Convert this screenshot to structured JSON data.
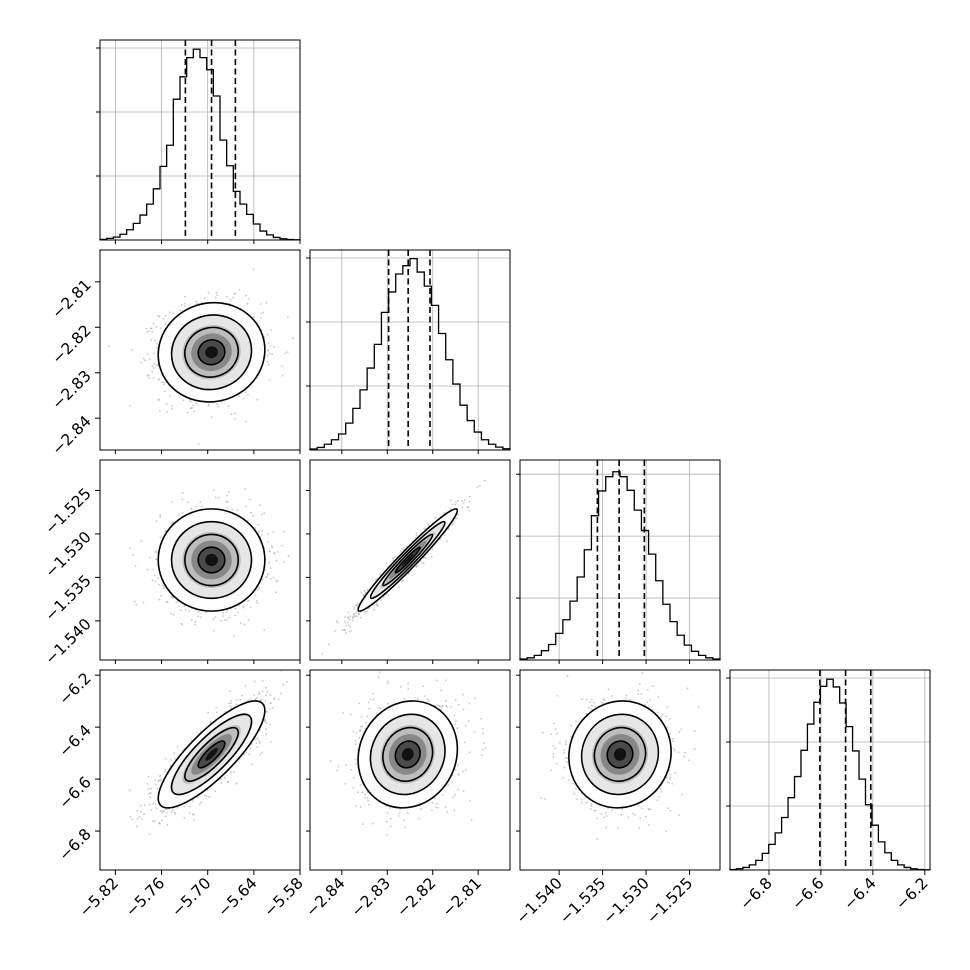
{
  "chart_data": {
    "type": "corner",
    "n_params": 4,
    "ranges": [
      [
        -5.84,
        -5.58
      ],
      [
        -2.847,
        -2.803
      ],
      [
        -1.5445,
        -1.5215
      ],
      [
        -6.95,
        -6.18
      ]
    ],
    "ticks": [
      {
        "values": [
          -5.82,
          -5.76,
          -5.7,
          -5.64,
          -5.58
        ],
        "labels": [
          "−5.82",
          "−5.76",
          "−5.70",
          "−5.64",
          "−5.58"
        ]
      },
      {
        "values": [
          -2.84,
          -2.83,
          -2.82,
          -2.81
        ],
        "labels": [
          "−2.84",
          "−2.83",
          "−2.82",
          "−2.81"
        ]
      },
      {
        "values": [
          -1.54,
          -1.535,
          -1.53,
          -1.525
        ],
        "labels": [
          "−1.540",
          "−1.535",
          "−1.530",
          "−1.525"
        ]
      },
      {
        "values": [
          -6.8,
          -6.6,
          -6.4,
          -6.2
        ],
        "labels": [
          "−6.8",
          "−6.6",
          "−6.4",
          "−6.2"
        ]
      }
    ],
    "marginals": [
      {
        "quantiles": [
          -5.729,
          -5.695,
          -5.664
        ],
        "hist_max": 3000,
        "hist_yticks": [
          1000,
          2000,
          3000
        ],
        "counts": [
          10,
          25,
          45,
          90,
          160,
          260,
          390,
          560,
          800,
          1150,
          1480,
          2200,
          2550,
          2850,
          2980,
          2850,
          2660,
          2250,
          1560,
          1160,
          760,
          560,
          400,
          250,
          140,
          80,
          40,
          20,
          8,
          3
        ]
      },
      {
        "quantiles": [
          -2.8297,
          -2.8254,
          -2.8206
        ],
        "hist_max": 3000,
        "hist_yticks": [
          1000,
          2000,
          3000
        ],
        "counts": [
          15,
          40,
          90,
          160,
          250,
          420,
          650,
          940,
          1280,
          1650,
          2150,
          2470,
          2750,
          2880,
          2990,
          2780,
          2560,
          2260,
          1820,
          1410,
          1030,
          700,
          460,
          280,
          160,
          90,
          45,
          20
        ]
      },
      {
        "quantiles": [
          -1.5356,
          -1.5331,
          -1.5302
        ],
        "hist_max": 3100,
        "hist_yticks": [
          1000,
          2000,
          3000
        ],
        "counts": [
          15,
          35,
          75,
          150,
          250,
          430,
          650,
          950,
          1340,
          1780,
          2330,
          2730,
          2960,
          3040,
          2960,
          2740,
          2420,
          2090,
          1710,
          1280,
          900,
          620,
          400,
          240,
          140,
          75,
          35,
          15
        ]
      },
      {
        "quantiles": [
          -6.604,
          -6.505,
          -6.408
        ],
        "hist_max": 3000,
        "hist_yticks": [
          1000,
          2000,
          3000
        ],
        "counts": [
          8,
          20,
          40,
          80,
          150,
          260,
          400,
          580,
          820,
          1130,
          1460,
          1870,
          2280,
          2620,
          2870,
          2980,
          2860,
          2610,
          2240,
          1860,
          1420,
          1020,
          700,
          440,
          270,
          150,
          80,
          40,
          20,
          8,
          3
        ]
      }
    ],
    "joint_pairs": [
      {
        "row": 1,
        "col": 0,
        "center": [
          -5.695,
          -2.8255
        ],
        "sigma": [
          0.033,
          0.0052
        ],
        "rho": 0.05
      },
      {
        "row": 2,
        "col": 0,
        "center": [
          -5.695,
          -1.533
        ],
        "sigma": [
          0.033,
          0.0028
        ],
        "rho": 0.0
      },
      {
        "row": 2,
        "col": 1,
        "center": [
          -2.8255,
          -1.533
        ],
        "sigma": [
          0.0052,
          0.0028
        ],
        "rho": 0.97
      },
      {
        "row": 3,
        "col": 0,
        "center": [
          -5.695,
          -6.505
        ],
        "sigma": [
          0.033,
          0.098
        ],
        "rho": 0.82
      },
      {
        "row": 3,
        "col": 1,
        "center": [
          -2.8255,
          -6.505
        ],
        "sigma": [
          0.0052,
          0.098
        ],
        "rho": 0.1
      },
      {
        "row": 3,
        "col": 2,
        "center": [
          -1.533,
          -6.505
        ],
        "sigma": [
          0.0028,
          0.098
        ],
        "rho": 0.05
      }
    ],
    "contour_sigma_levels": [
      0.5,
      1.0,
      1.5,
      2.0
    ],
    "colors": {
      "line": "#000000",
      "points": "#9a9a9a",
      "grid": "#b0b0b0"
    }
  }
}
